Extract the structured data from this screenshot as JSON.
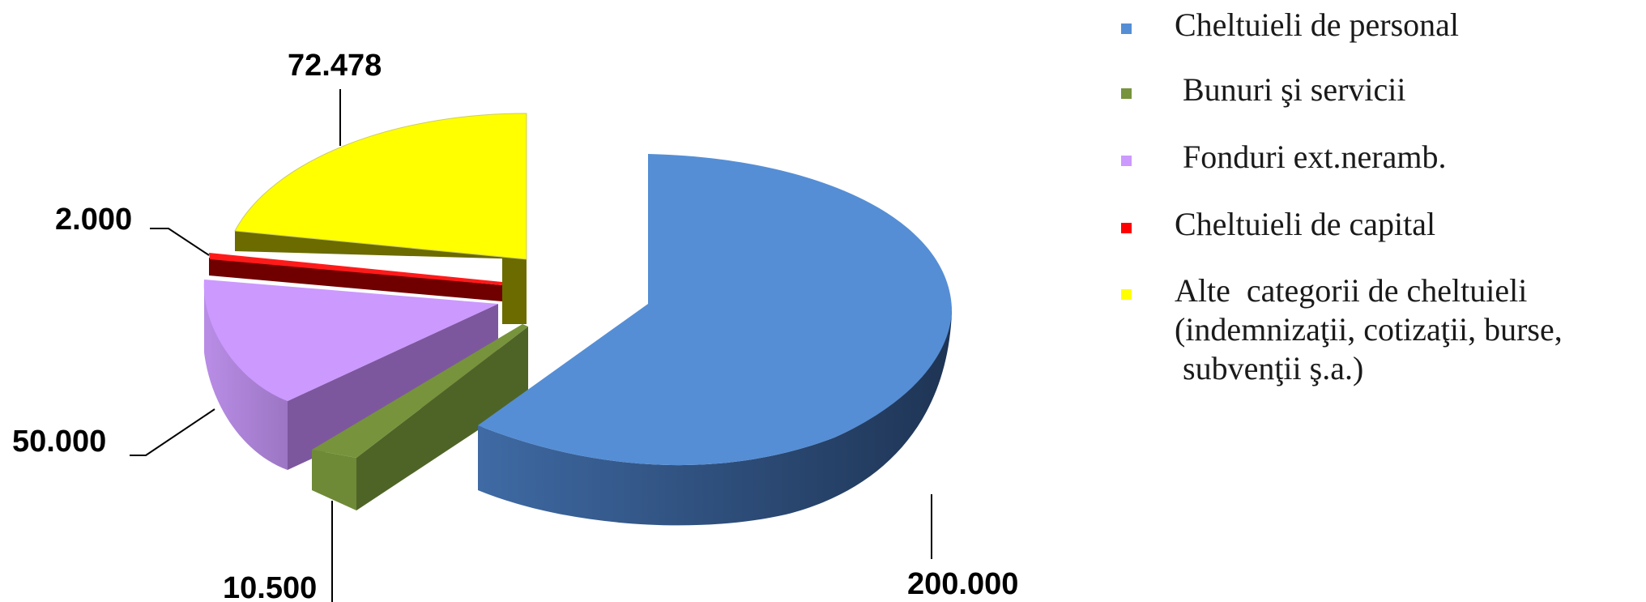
{
  "chart_data": {
    "type": "pie",
    "title": "",
    "style": "3d-exploded",
    "slices": [
      {
        "label": "Cheltuieli de personal",
        "value": 200000,
        "value_label": "200.000",
        "color": "#558ed5"
      },
      {
        "label": " Bunuri şi servicii",
        "value": 10500,
        "value_label": "10.500",
        "color": "#77933c"
      },
      {
        "label": " Fonduri ext.neramb.",
        "value": 50000,
        "value_label": "50.000",
        "color": "#cc99ff"
      },
      {
        "label": "Cheltuieli de capital",
        "value": 2000,
        "value_label": "2.000",
        "color": "#ff0000"
      },
      {
        "label": "Alte  categorii de cheltuieli",
        "label_lines": [
          "Alte  categorii de cheltuieli",
          "(indemnizaţii, cotizaţii, burse,",
          " subvenţii ş.a.)"
        ],
        "value": 72478,
        "value_label": "72.478",
        "color": "#ffff00"
      }
    ],
    "legend_position": "right"
  }
}
